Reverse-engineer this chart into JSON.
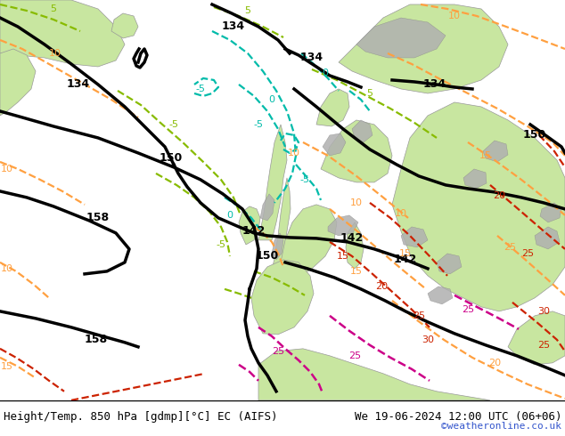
{
  "title_left": "Height/Temp. 850 hPa [gdmp][°C] EC (AIFS)",
  "title_right": "We 19-06-2024 12:00 UTC (06+06)",
  "credit": "©weatheronline.co.uk",
  "land_green": "#c8e6a0",
  "land_gray": "#b0b0b0",
  "sea_color": "#e8e8e8",
  "credit_color": "#3355cc",
  "figsize": [
    6.34,
    4.9
  ],
  "dpi": 100,
  "orange": "#FFA040",
  "ygreen": "#88bb00",
  "cyan": "#00BBAA",
  "red": "#cc2200",
  "magenta": "#cc0088"
}
